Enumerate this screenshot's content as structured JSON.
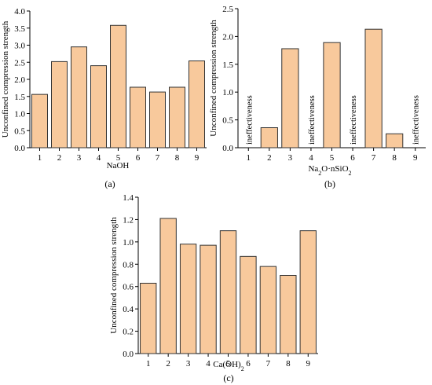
{
  "chart_data": [
    {
      "type": "bar",
      "panel_label": "(a)",
      "categories": [
        "1",
        "2",
        "3",
        "4",
        "5",
        "6",
        "7",
        "8",
        "9"
      ],
      "values": [
        1.56,
        2.52,
        2.95,
        2.4,
        3.58,
        1.77,
        1.63,
        1.77,
        2.54
      ],
      "xlabel": "NaOH",
      "ylabel": "Unconfined compression strength",
      "ylim": [
        0,
        4.0
      ],
      "yticks": [
        "0.0",
        "0.5",
        "1.0",
        "1.5",
        "2.0",
        "2.5",
        "3.0",
        "3.5",
        "4.0"
      ],
      "annotations": []
    },
    {
      "type": "bar",
      "panel_label": "(b)",
      "categories": [
        "1",
        "2",
        "3",
        "4",
        "5",
        "6",
        "7",
        "8",
        "9"
      ],
      "values": [
        null,
        0.36,
        1.78,
        null,
        1.89,
        null,
        2.13,
        0.25,
        null
      ],
      "xlabel": "Na2O·nSiO2",
      "ylabel": "Unconfined compression strength",
      "ylim": [
        0,
        2.5
      ],
      "yticks": [
        "0.0",
        "0.5",
        "1.0",
        "1.5",
        "2.0",
        "2.5"
      ],
      "annotations": [
        "ineffectiveness",
        "ineffectiveness",
        "ineffectiveness",
        "ineffectiveness"
      ],
      "annotation_categories": [
        "1",
        "4",
        "6",
        "9"
      ]
    },
    {
      "type": "bar",
      "panel_label": "(c)",
      "categories": [
        "1",
        "2",
        "3",
        "4",
        "5",
        "6",
        "7",
        "8",
        "9"
      ],
      "values": [
        0.63,
        1.21,
        0.98,
        0.97,
        1.1,
        0.87,
        0.78,
        0.7,
        1.1
      ],
      "xlabel": "Ca(OH)2",
      "ylabel": "Unconfined compression strength",
      "ylim": [
        0,
        1.4
      ],
      "yticks": [
        "0.0",
        "0.2",
        "0.4",
        "0.6",
        "0.8",
        "1.0",
        "1.2",
        "1.4"
      ],
      "annotations": []
    }
  ]
}
